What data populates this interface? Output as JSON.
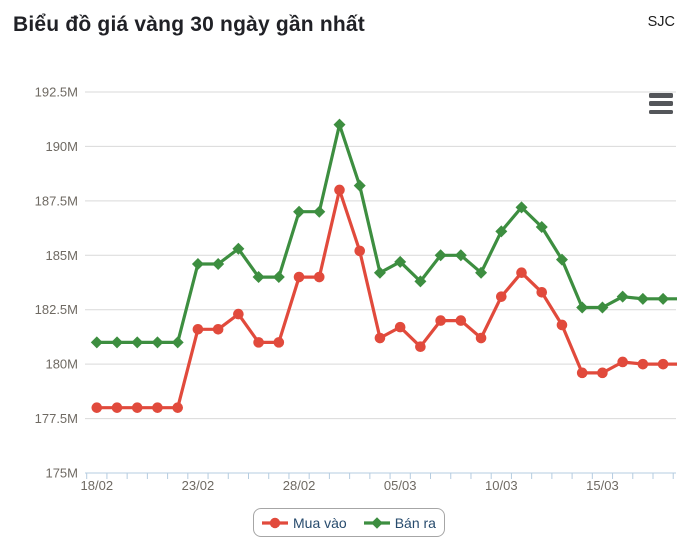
{
  "header": {
    "title": "Biểu đồ giá vàng 30 ngày gần nhất",
    "unit_label": "SJC"
  },
  "icons": {
    "menu": "hamburger-menu"
  },
  "colors": {
    "grid": "#d9d9d9",
    "axis": "#b5cce0",
    "axis_label": "#6f6a63",
    "legend_text": "#274b6d",
    "legend_border": "#a6a6a6",
    "title_text": "#202126",
    "menu_icon": "#54565a",
    "background": "#ffffff"
  },
  "chart_data": {
    "type": "line",
    "title": "Biểu đồ giá vàng 30 ngày gần nhất",
    "unit_label": "SJC",
    "n_points": 30,
    "grid": true,
    "legend_position": "bottom",
    "ylim": [
      175,
      192.5
    ],
    "y_tick_labels": [
      "192.5M",
      "190M",
      "187.5M",
      "185M",
      "182.5M",
      "180M",
      "177.5M",
      "175M"
    ],
    "x_tick_labels": [
      "18/02",
      "23/02",
      "28/02",
      "05/03",
      "10/03",
      "15/03"
    ],
    "x_tick_point_indices": [
      0,
      5,
      10,
      15,
      20,
      25
    ],
    "series": [
      {
        "name": "Mua vào",
        "marker": "circle",
        "color": "#e14a3c",
        "values": [
          178.0,
          178.0,
          178.0,
          178.0,
          178.0,
          181.6,
          181.6,
          182.3,
          181.0,
          181.0,
          184.0,
          184.0,
          188.0,
          185.2,
          181.2,
          181.7,
          180.8,
          182.0,
          182.0,
          181.2,
          183.1,
          184.2,
          183.3,
          181.8,
          179.6,
          179.6,
          180.1,
          180.0,
          180.0,
          180.0
        ]
      },
      {
        "name": "Bán ra",
        "marker": "diamond",
        "color": "#3d8e40",
        "values": [
          181.0,
          181.0,
          181.0,
          181.0,
          181.0,
          184.6,
          184.6,
          185.3,
          184.0,
          184.0,
          187.0,
          187.0,
          191.0,
          188.2,
          184.2,
          184.7,
          183.8,
          185.0,
          185.0,
          184.2,
          186.1,
          187.2,
          186.3,
          184.8,
          182.6,
          182.6,
          183.1,
          183.0,
          183.0,
          183.0
        ]
      }
    ]
  }
}
